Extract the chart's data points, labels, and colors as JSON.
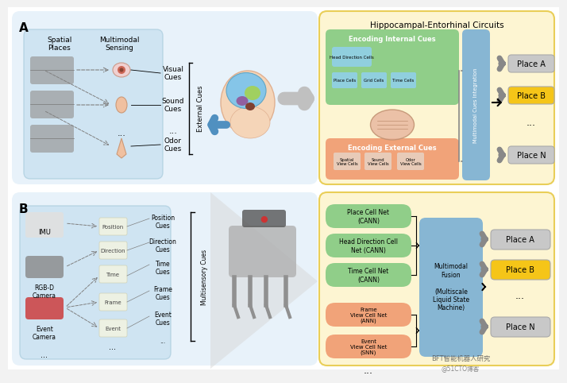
{
  "bg_color": "#f2f2f2",
  "panel_bg": "#daeaf7",
  "yellow_bg": "#fdf5d0",
  "yellow_border": "#e8cc50",
  "green_box": "#6aba6a",
  "green_box2": "#7dc87d",
  "orange_box": "#f0956a",
  "blue_box": "#7aafd4",
  "gray_box": "#c8c8c8",
  "yellow_place": "#f5c518",
  "title_top": "Hippocampal-Entorhinal Circuits",
  "panel_a_label": "A",
  "panel_b_label": "B",
  "nets_green": [
    "Place Cell Net\n(CANN)",
    "Head Direction Cell\nNet (CANN)",
    "Time Cell Net\n(CANN)"
  ],
  "nets_orange": [
    "Frame\nView Cell Net\n(ANN)",
    "Event\nView Cell Net\n(SNN)"
  ],
  "fusion_label": "Multimodal\nFusion\n\n(Multiscale\nLiquid State\nMachine)",
  "watermark1": "BFT智能机器人研究",
  "watermark2": "@51CTO博客"
}
